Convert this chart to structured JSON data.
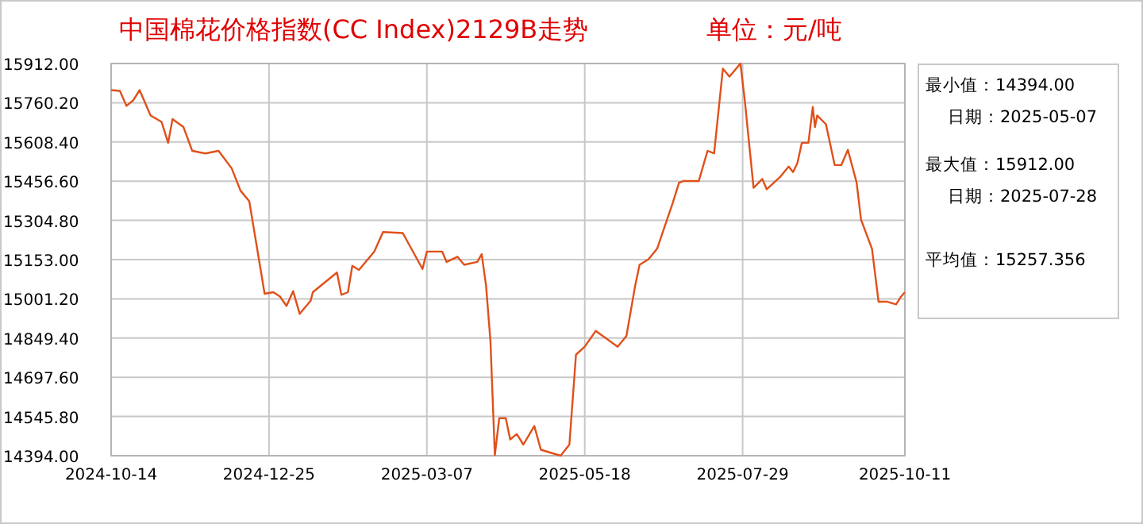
{
  "chart_data": {
    "type": "line",
    "title": "中国棉花价格指数(CC Index)2129B走势",
    "subtitle": "单位：元/吨",
    "annotations": [
      "最小值：14394.00",
      "日期：2025-05-07",
      "最大值：15912.00",
      "日期：2025-07-28",
      "平均值：15257.356"
    ],
    "x": [
      "2024-10-14",
      "2024-10-18",
      "2024-10-21",
      "2024-10-24",
      "2024-10-27",
      "2024-11-01",
      "2024-11-06",
      "2024-11-09",
      "2024-11-11",
      "2024-11-16",
      "2024-11-20",
      "2024-11-26",
      "2024-12-02",
      "2024-12-08",
      "2024-12-12",
      "2024-12-16",
      "2024-12-23",
      "2024-12-27",
      "2024-12-30",
      "2025-01-02",
      "2025-01-05",
      "2025-01-08",
      "2025-01-13",
      "2025-01-14",
      "2025-01-25",
      "2025-01-27",
      "2025-01-30",
      "2025-02-01",
      "2025-02-04",
      "2025-02-11",
      "2025-02-15",
      "2025-02-24",
      "2025-03-05",
      "2025-03-07",
      "2025-03-14",
      "2025-03-16",
      "2025-03-21",
      "2025-03-24",
      "2025-03-30",
      "2025-04-01",
      "2025-04-03",
      "2025-04-05",
      "2025-04-07",
      "2025-04-09",
      "2025-04-12",
      "2025-04-14",
      "2025-04-17",
      "2025-04-20",
      "2025-04-25",
      "2025-04-28",
      "2025-05-07",
      "2025-05-11",
      "2025-05-14",
      "2025-05-18",
      "2025-05-23",
      "2025-06-02",
      "2025-06-06",
      "2025-06-10",
      "2025-06-12",
      "2025-06-16",
      "2025-06-20",
      "2025-06-27",
      "2025-06-30",
      "2025-07-02",
      "2025-07-09",
      "2025-07-13",
      "2025-07-16",
      "2025-07-20",
      "2025-07-23",
      "2025-07-28",
      "2025-07-30",
      "2025-08-03",
      "2025-08-07",
      "2025-08-09",
      "2025-08-15",
      "2025-08-19",
      "2025-08-21",
      "2025-08-23",
      "2025-08-25",
      "2025-08-28",
      "2025-08-30",
      "2025-08-31",
      "2025-09-01",
      "2025-09-05",
      "2025-09-09",
      "2025-09-12",
      "2025-09-15",
      "2025-09-19",
      "2025-09-21",
      "2025-09-26",
      "2025-09-29",
      "2025-10-03",
      "2025-10-07",
      "2025-10-09",
      "2025-10-11"
    ],
    "series": [
      {
        "color": "#e0501a",
        "values": [
          15809,
          15806,
          15748,
          15769,
          15809,
          15711,
          15686,
          15605,
          15697,
          15666,
          15574,
          15564,
          15574,
          15506,
          15420,
          15379,
          15021,
          15027,
          15010,
          14974,
          15031,
          14943,
          14994,
          15027,
          15103,
          15017,
          15027,
          15129,
          15113,
          15184,
          15260,
          15256,
          15117,
          15184,
          15184,
          15144,
          15164,
          15133,
          15144,
          15174,
          15052,
          14837,
          14396,
          14539,
          14539,
          14457,
          14478,
          14437,
          14509,
          14417,
          14394,
          14437,
          14785,
          14816,
          14877,
          14816,
          14857,
          15052,
          15133,
          15154,
          15195,
          15369,
          15451,
          15457,
          15457,
          15574,
          15564,
          15892,
          15861,
          15912,
          15769,
          15431,
          15465,
          15425,
          15472,
          15513,
          15492,
          15527,
          15605,
          15605,
          15744,
          15666,
          15711,
          15677,
          15519,
          15519,
          15578,
          15451,
          15308,
          15195,
          14990,
          14990,
          14980,
          15007,
          15027
        ]
      }
    ],
    "xlim": [
      "2024-10-14",
      "2025-10-11"
    ],
    "xticks": [
      "2024-10-14",
      "2024-12-25",
      "2025-03-07",
      "2025-05-18",
      "2025-07-29",
      "2025-10-11"
    ],
    "ylim": [
      14394,
      15912
    ],
    "yticks": [
      {
        "value": 14394,
        "label": "14394.00"
      },
      {
        "value": 14545.8,
        "label": "14545.80"
      },
      {
        "value": 14697.6,
        "label": "14697.60"
      },
      {
        "value": 14849.4,
        "label": "14849.40"
      },
      {
        "value": 15001.2,
        "label": "15001.20"
      },
      {
        "value": 15153,
        "label": "15153.00"
      },
      {
        "value": 15304.8,
        "label": "15304.80"
      },
      {
        "value": 15456.6,
        "label": "15456.60"
      },
      {
        "value": 15608.4,
        "label": "15608.40"
      },
      {
        "value": 15760.2,
        "label": "15760.20"
      },
      {
        "value": 15912,
        "label": "15912.00"
      }
    ],
    "grid": true,
    "marker": "none",
    "line_style": "solid"
  }
}
